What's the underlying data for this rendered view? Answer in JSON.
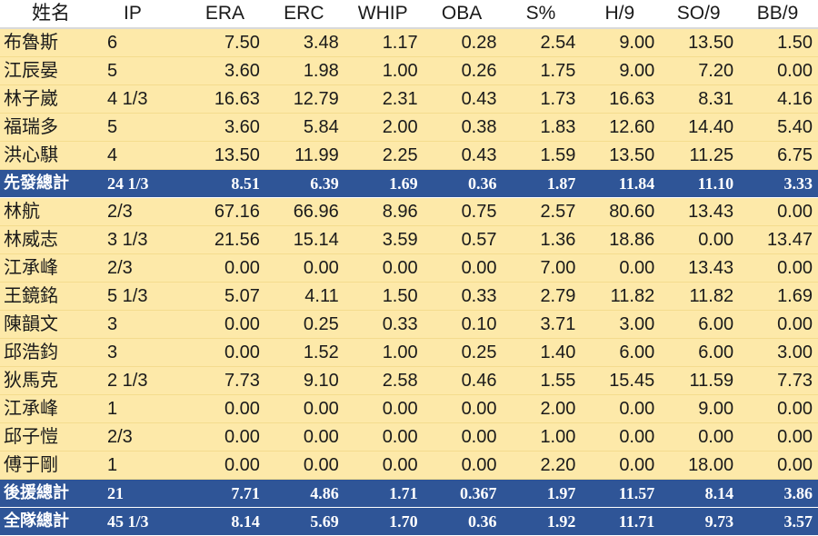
{
  "headers": [
    "姓名",
    "IP",
    "ERA",
    "ERC",
    "WHIP",
    "OBA",
    "S%",
    "H/9",
    "SO/9",
    "BB/9"
  ],
  "rows": [
    {
      "kind": "player",
      "cells": [
        "布魯斯",
        "6",
        "7.50",
        "3.48",
        "1.17",
        "0.28",
        "2.54",
        "9.00",
        "13.50",
        "1.50"
      ]
    },
    {
      "kind": "player",
      "cells": [
        "江辰晏",
        "5",
        "3.60",
        "1.98",
        "1.00",
        "0.26",
        "1.75",
        "9.00",
        "7.20",
        "0.00"
      ]
    },
    {
      "kind": "player",
      "cells": [
        "林子崴",
        "4 1/3",
        "16.63",
        "12.79",
        "2.31",
        "0.43",
        "1.73",
        "16.63",
        "8.31",
        "4.16"
      ]
    },
    {
      "kind": "player",
      "cells": [
        "福瑞多",
        "5",
        "3.60",
        "5.84",
        "2.00",
        "0.38",
        "1.83",
        "12.60",
        "14.40",
        "5.40"
      ]
    },
    {
      "kind": "player",
      "cells": [
        "洪心騏",
        "4",
        "13.50",
        "11.99",
        "2.25",
        "0.43",
        "1.59",
        "13.50",
        "11.25",
        "6.75"
      ]
    },
    {
      "kind": "total",
      "cells": [
        "先發總計",
        "24 1/3",
        "8.51",
        "6.39",
        "1.69",
        "0.36",
        "1.87",
        "11.84",
        "11.10",
        "3.33"
      ]
    },
    {
      "kind": "player",
      "cells": [
        "林航",
        "2/3",
        "67.16",
        "66.96",
        "8.96",
        "0.75",
        "2.57",
        "80.60",
        "13.43",
        "0.00"
      ]
    },
    {
      "kind": "player",
      "cells": [
        "林威志",
        "3 1/3",
        "21.56",
        "15.14",
        "3.59",
        "0.57",
        "1.36",
        "18.86",
        "0.00",
        "13.47"
      ]
    },
    {
      "kind": "player",
      "cells": [
        "江承峰",
        "2/3",
        "0.00",
        "0.00",
        "0.00",
        "0.00",
        "7.00",
        "0.00",
        "13.43",
        "0.00"
      ]
    },
    {
      "kind": "player",
      "cells": [
        "王鏡銘",
        "5 1/3",
        "5.07",
        "4.11",
        "1.50",
        "0.33",
        "2.79",
        "11.82",
        "11.82",
        "1.69"
      ]
    },
    {
      "kind": "player",
      "cells": [
        "陳韻文",
        "3",
        "0.00",
        "0.25",
        "0.33",
        "0.10",
        "3.71",
        "3.00",
        "6.00",
        "0.00"
      ]
    },
    {
      "kind": "player",
      "cells": [
        "邱浩鈞",
        "3",
        "0.00",
        "1.52",
        "1.00",
        "0.25",
        "1.40",
        "6.00",
        "6.00",
        "3.00"
      ]
    },
    {
      "kind": "player",
      "cells": [
        "狄馬克",
        "2 1/3",
        "7.73",
        "9.10",
        "2.58",
        "0.46",
        "1.55",
        "15.45",
        "11.59",
        "7.73"
      ]
    },
    {
      "kind": "player",
      "cells": [
        "江承峰",
        "1",
        "0.00",
        "0.00",
        "0.00",
        "0.00",
        "2.00",
        "0.00",
        "9.00",
        "0.00"
      ]
    },
    {
      "kind": "player",
      "cells": [
        "邱子愷",
        "2/3",
        "0.00",
        "0.00",
        "0.00",
        "0.00",
        "1.00",
        "0.00",
        "0.00",
        "0.00"
      ]
    },
    {
      "kind": "player",
      "cells": [
        "傅于剛",
        "1",
        "0.00",
        "0.00",
        "0.00",
        "0.00",
        "2.20",
        "0.00",
        "18.00",
        "0.00"
      ]
    },
    {
      "kind": "total",
      "cells": [
        "後援總計",
        "21",
        "7.71",
        "4.86",
        "1.71",
        "0.367",
        "1.97",
        "11.57",
        "8.14",
        "3.86"
      ]
    },
    {
      "kind": "total",
      "cells": [
        "全隊總計",
        "45 1/3",
        "8.14",
        "5.69",
        "1.70",
        "0.36",
        "1.92",
        "11.71",
        "9.73",
        "3.57"
      ]
    }
  ]
}
